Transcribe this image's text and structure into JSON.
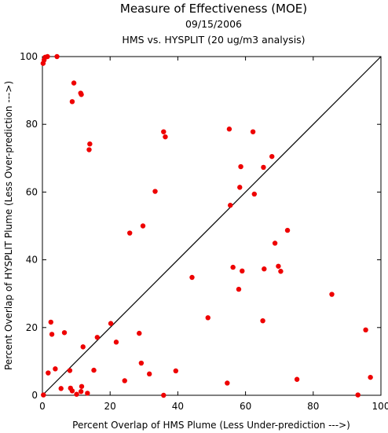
{
  "chart_data": {
    "type": "scatter",
    "title": "Measure of Effectiveness (MOE)",
    "subtitle_date": "09/15/2006",
    "subtitle_analysis": "HMS vs. HYSPLIT  (20 ug/m3 analysis)",
    "xlabel": "Percent Overlap of HMS Plume (Less Under-prediction --->)",
    "ylabel": "Percent Overlap of HYSPLIT Plume (Less Over-prediction --->)",
    "xlim": [
      0,
      100
    ],
    "ylim": [
      0,
      100
    ],
    "x_ticks": [
      "0",
      "20",
      "40",
      "60",
      "80",
      "100"
    ],
    "y_ticks": [
      "0",
      "20",
      "40",
      "60",
      "80",
      "100"
    ],
    "grid": false,
    "reference_line": {
      "from": [
        0,
        0
      ],
      "to": [
        100,
        100
      ],
      "color": "#000000"
    },
    "point_color": "#ee0000",
    "points": [
      {
        "x": 0.8,
        "y": 99.8
      },
      {
        "x": 1.5,
        "y": 100
      },
      {
        "x": 0.5,
        "y": 99
      },
      {
        "x": 0.2,
        "y": 98
      },
      {
        "x": 4.3,
        "y": 100
      },
      {
        "x": 9.3,
        "y": 92.2
      },
      {
        "x": 11.3,
        "y": 89.2
      },
      {
        "x": 11.5,
        "y": 88.8
      },
      {
        "x": 8.8,
        "y": 86.7
      },
      {
        "x": 14,
        "y": 74.2
      },
      {
        "x": 13.8,
        "y": 72.5
      },
      {
        "x": 35.8,
        "y": 77.8
      },
      {
        "x": 36.3,
        "y": 76.3
      },
      {
        "x": 55.2,
        "y": 78.6
      },
      {
        "x": 62.2,
        "y": 77.8
      },
      {
        "x": 33.3,
        "y": 60.2
      },
      {
        "x": 29.7,
        "y": 50
      },
      {
        "x": 25.8,
        "y": 47.9
      },
      {
        "x": 58.6,
        "y": 67.5
      },
      {
        "x": 65.3,
        "y": 67.3
      },
      {
        "x": 67.8,
        "y": 70.5
      },
      {
        "x": 58.3,
        "y": 61.4
      },
      {
        "x": 62.6,
        "y": 59.4
      },
      {
        "x": 55.5,
        "y": 56.1
      },
      {
        "x": 72.4,
        "y": 48.7
      },
      {
        "x": 68.7,
        "y": 44.9
      },
      {
        "x": 56.3,
        "y": 37.8
      },
      {
        "x": 59,
        "y": 36.7
      },
      {
        "x": 65.5,
        "y": 37.3
      },
      {
        "x": 69.7,
        "y": 38.1
      },
      {
        "x": 70.4,
        "y": 36.6
      },
      {
        "x": 44.2,
        "y": 34.8
      },
      {
        "x": 58,
        "y": 31.3
      },
      {
        "x": 85.5,
        "y": 29.8
      },
      {
        "x": 48.9,
        "y": 22.9
      },
      {
        "x": 65.1,
        "y": 22
      },
      {
        "x": 95.5,
        "y": 19.3
      },
      {
        "x": 20.2,
        "y": 21.2
      },
      {
        "x": 2.5,
        "y": 21.6
      },
      {
        "x": 6.5,
        "y": 18.5
      },
      {
        "x": 2.8,
        "y": 18
      },
      {
        "x": 28.6,
        "y": 18.3
      },
      {
        "x": 16.2,
        "y": 17.1
      },
      {
        "x": 21.8,
        "y": 15.7
      },
      {
        "x": 12,
        "y": 14.3
      },
      {
        "x": 29.2,
        "y": 9.5
      },
      {
        "x": 3.8,
        "y": 7.8
      },
      {
        "x": 8.1,
        "y": 7.3
      },
      {
        "x": 15.2,
        "y": 7.4
      },
      {
        "x": 39.4,
        "y": 7.2
      },
      {
        "x": 1.7,
        "y": 6.6
      },
      {
        "x": 31.6,
        "y": 6.3
      },
      {
        "x": 96.9,
        "y": 5.3
      },
      {
        "x": 75.2,
        "y": 4.7
      },
      {
        "x": 24.3,
        "y": 4.3
      },
      {
        "x": 54.6,
        "y": 3.6
      },
      {
        "x": 11.6,
        "y": 2.6
      },
      {
        "x": 5.5,
        "y": 2
      },
      {
        "x": 8.3,
        "y": 2.1
      },
      {
        "x": 8.8,
        "y": 1.3
      },
      {
        "x": 11.4,
        "y": 1.1
      },
      {
        "x": 13.3,
        "y": 0.6
      },
      {
        "x": 10.1,
        "y": 0.3
      },
      {
        "x": 35.8,
        "y": 0
      },
      {
        "x": 93.2,
        "y": 0.1
      },
      {
        "x": 0.3,
        "y": 0.1
      }
    ]
  }
}
